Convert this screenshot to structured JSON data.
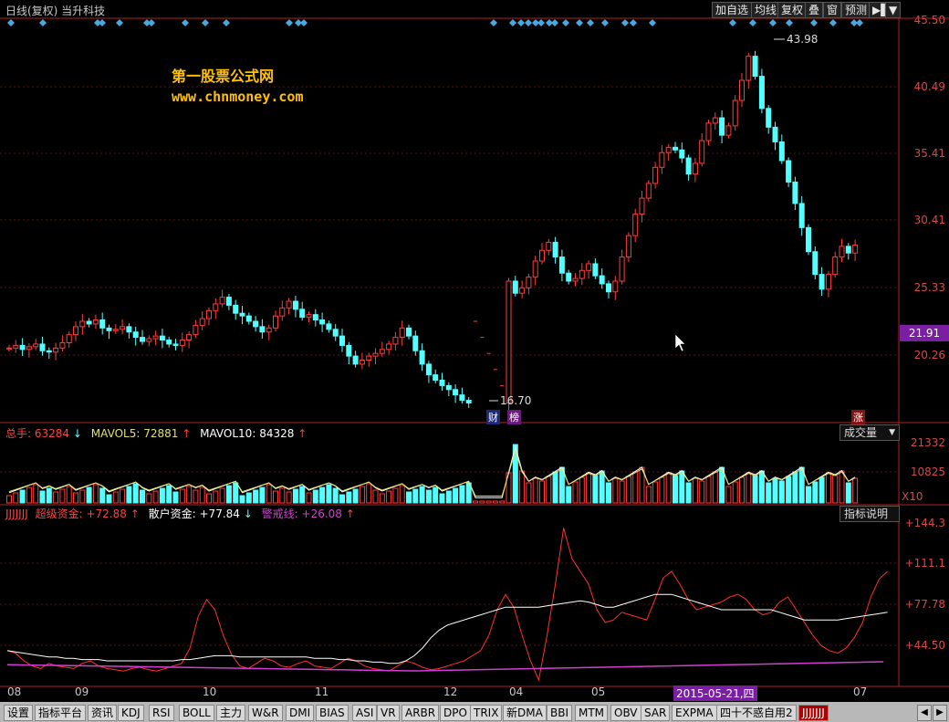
{
  "header": {
    "title": "日线(复权) 当升科技",
    "buttons": [
      "加自选",
      "均线",
      "复权",
      "叠",
      "窗",
      "预测",
      "▶▌",
      "▼"
    ]
  },
  "watermark": {
    "line1": "第一股票公式网",
    "line2": "www.chnmoney.com"
  },
  "price_axis": [
    "45.50",
    "40.49",
    "35.41",
    "30.41",
    "25.33",
    "20.26"
  ],
  "current_price": "21.91",
  "annotations": {
    "high": "43.98",
    "low": "16.70",
    "tag_cai": "财",
    "tag_bang": "榜",
    "tag_zhang": "涨"
  },
  "volume_panel": {
    "legend": [
      {
        "label": "总手:",
        "value": "63284",
        "arrow": "↓"
      },
      {
        "label": "MAVOL5:",
        "value": "72881",
        "arrow": "↑"
      },
      {
        "label": "MAVOL10:",
        "value": "84328",
        "arrow": "↑"
      }
    ],
    "button": "成交量",
    "axis": [
      "21332",
      "10825"
    ],
    "unit": "X10"
  },
  "indicator_panel": {
    "name": "JJJJJJJ",
    "legend": [
      {
        "label": "超级资金:",
        "value": "+72.88",
        "arrow": "↑"
      },
      {
        "label": "散户资金:",
        "value": "+77.84",
        "arrow": "↓"
      },
      {
        "label": "警戒线:",
        "value": "+26.08",
        "arrow": "↑"
      }
    ],
    "button": "指标说明",
    "axis": [
      "+144.3",
      "+111.1",
      "+77.78",
      "+44.50"
    ]
  },
  "time_axis": {
    "months": [
      "08",
      "09",
      "10",
      "11",
      "12",
      "04",
      "05",
      "07"
    ],
    "cursor_date": "2015-05-21,四"
  },
  "tabs": [
    "设置",
    "指标平台",
    "资讯",
    "KDJ",
    "RSI",
    "BOLL",
    "主力",
    "W&R",
    "DMI",
    "BIAS",
    "ASI",
    "VR",
    "ARBR",
    "DPO",
    "TRIX",
    "新DMA",
    "BBI",
    "MTM",
    "OBV",
    "SAR",
    "EXPMA",
    "四十不惑自用2",
    "JJJJJJJ"
  ],
  "tab_nav": [
    "◀",
    "▶"
  ],
  "colors": {
    "up": "#ff3c3c",
    "down": "#54ffff",
    "axis": "#c83232",
    "highlight": "#7a1fa2"
  },
  "chart_data": {
    "type": "candlestick",
    "price_ylim": [
      15.5,
      45.5
    ],
    "price_high": 43.98,
    "price_low": 16.7,
    "close_series": [
      21.0,
      21.2,
      20.9,
      21.1,
      21.3,
      20.8,
      20.7,
      21.0,
      21.4,
      22.0,
      22.6,
      23.0,
      22.8,
      23.1,
      22.5,
      22.3,
      22.4,
      22.6,
      22.2,
      21.8,
      21.5,
      21.7,
      21.9,
      21.6,
      21.3,
      21.2,
      21.6,
      22.0,
      22.7,
      23.2,
      23.8,
      24.3,
      24.8,
      24.2,
      23.6,
      23.4,
      23.0,
      22.6,
      22.2,
      22.5,
      23.4,
      24.0,
      24.5,
      23.9,
      23.3,
      23.5,
      23.1,
      22.8,
      22.4,
      21.9,
      21.2,
      20.4,
      19.8,
      20.1,
      20.4,
      20.6,
      20.9,
      21.3,
      21.8,
      22.5,
      21.9,
      20.8,
      19.8,
      19.0,
      18.6,
      18.2,
      17.9,
      17.5,
      17.1,
      16.9,
      null,
      null,
      null,
      null,
      null,
      26.0,
      25.1,
      25.5,
      26.3,
      27.5,
      28.3,
      28.9,
      27.8,
      26.6,
      26.0,
      26.2,
      26.8,
      27.3,
      26.4,
      25.8,
      25.2,
      26.0,
      27.8,
      29.4,
      31.0,
      32.2,
      33.3,
      34.5,
      35.6,
      36.0,
      35.8,
      35.2,
      34.0,
      34.8,
      36.5,
      37.8,
      38.2,
      36.9,
      37.6,
      39.5,
      41.0,
      42.8,
      41.3,
      38.9,
      37.5,
      36.4,
      35.0,
      33.4,
      31.8,
      30.0,
      28.2,
      26.5,
      25.4,
      26.5,
      27.8,
      28.6,
      28.1,
      28.7
    ]
  }
}
